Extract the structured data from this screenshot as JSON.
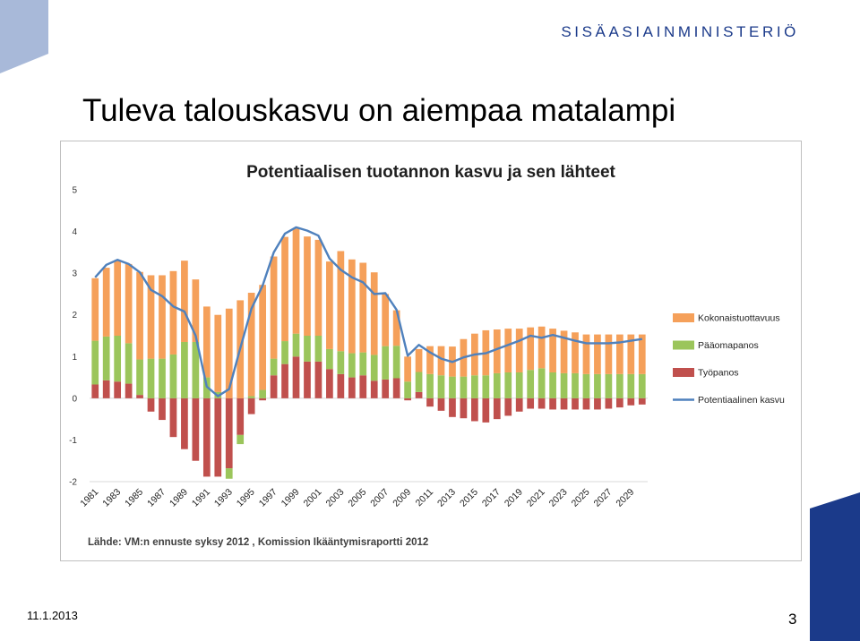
{
  "header": {
    "ministry_name": "SISÄASIAINMINISTERIÖ",
    "slide_title": "Tuleva talouskasvu on aiempaa matalampi"
  },
  "footer": {
    "date": "11.1.2013",
    "page_number": "3"
  },
  "colors": {
    "brand_blue": "#1b3a8a",
    "deco_light_blue": "#a8b9d9",
    "kokonaistuottavuus": "#f5a05a",
    "paaomapanos": "#9bc55b",
    "tyopanos": "#c0504d",
    "potentiaalinen_kasvu": "#4f81bd"
  },
  "chart_data": {
    "type": "bar",
    "stacked": true,
    "title": "Potentiaalisen tuotannon kasvu ja sen lähteet",
    "source": "Lähde: VM:n ennuste syksy 2012 , Komission Ikääntymisraportti 2012",
    "xlabel": "",
    "ylabel": "",
    "ylim": [
      -2,
      5
    ],
    "yticks": [
      "5",
      "4",
      "3",
      "2",
      "1",
      "0",
      "-1",
      "-2"
    ],
    "grid": false,
    "legend_position": "right",
    "x": [
      1981,
      1982,
      1983,
      1984,
      1985,
      1986,
      1987,
      1988,
      1989,
      1990,
      1991,
      1992,
      1993,
      1994,
      1995,
      1996,
      1997,
      1998,
      1999,
      2000,
      2001,
      2002,
      2003,
      2004,
      2005,
      2006,
      2007,
      2008,
      2009,
      2010,
      2011,
      2012,
      2013,
      2014,
      2015,
      2016,
      2017,
      2018,
      2019,
      2020,
      2021,
      2022,
      2023,
      2024,
      2025,
      2026,
      2027,
      2028,
      2029,
      2030
    ],
    "xtick_labels": [
      "1981",
      "1983",
      "1985",
      "1987",
      "1989",
      "1991",
      "1993",
      "1995",
      "1997",
      "1999",
      "2001",
      "2003",
      "2005",
      "2007",
      "2009",
      "2011",
      "2013",
      "2015",
      "2017",
      "2019",
      "2021",
      "2023",
      "2025",
      "2027",
      "2029"
    ],
    "series": [
      {
        "name": "Työpanos",
        "kind": "bar",
        "values": [
          0.33,
          0.43,
          0.4,
          0.35,
          0.08,
          -0.32,
          -0.52,
          -0.93,
          -1.22,
          -1.5,
          -1.88,
          -1.88,
          -1.68,
          -0.88,
          -0.38,
          -0.05,
          0.55,
          0.82,
          1.0,
          0.88,
          0.88,
          0.7,
          0.58,
          0.5,
          0.55,
          0.42,
          0.45,
          0.48,
          -0.05,
          0.15,
          -0.2,
          -0.3,
          -0.45,
          -0.48,
          -0.55,
          -0.58,
          -0.5,
          -0.42,
          -0.32,
          -0.25,
          -0.25,
          -0.27,
          -0.27,
          -0.27,
          -0.27,
          -0.27,
          -0.25,
          -0.22,
          -0.17,
          -0.15
        ]
      },
      {
        "name": "Pääomapanos",
        "kind": "bar",
        "values": [
          1.05,
          1.05,
          1.1,
          0.97,
          0.85,
          0.95,
          0.95,
          1.05,
          1.35,
          1.35,
          0.5,
          0.15,
          -0.25,
          -0.22,
          0.05,
          0.2,
          0.4,
          0.55,
          0.55,
          0.62,
          0.62,
          0.48,
          0.55,
          0.58,
          0.55,
          0.62,
          0.8,
          0.78,
          0.4,
          0.48,
          0.58,
          0.55,
          0.52,
          0.52,
          0.55,
          0.55,
          0.6,
          0.62,
          0.62,
          0.68,
          0.72,
          0.62,
          0.6,
          0.6,
          0.58,
          0.58,
          0.58,
          0.58,
          0.58,
          0.58
        ]
      },
      {
        "name": "Kokonaistuottavuus",
        "kind": "bar",
        "values": [
          1.5,
          1.65,
          1.8,
          1.9,
          2.1,
          2.0,
          2.0,
          2.0,
          1.95,
          1.5,
          1.7,
          1.85,
          2.15,
          2.35,
          2.48,
          2.52,
          2.45,
          2.5,
          2.52,
          2.38,
          2.3,
          2.1,
          2.4,
          2.25,
          2.15,
          1.98,
          1.25,
          0.85,
          0.6,
          0.55,
          0.67,
          0.7,
          0.72,
          0.9,
          1.0,
          1.08,
          1.05,
          1.05,
          1.05,
          1.02,
          1.0,
          1.05,
          1.02,
          0.98,
          0.95,
          0.95,
          0.95,
          0.95,
          0.95,
          0.95
        ]
      },
      {
        "name": "Potentiaalinen kasvu",
        "kind": "line",
        "values": [
          2.9,
          3.2,
          3.32,
          3.22,
          3.02,
          2.6,
          2.45,
          2.2,
          2.08,
          1.5,
          0.28,
          0.05,
          0.22,
          1.2,
          2.15,
          2.7,
          3.5,
          3.95,
          4.1,
          4.02,
          3.9,
          3.35,
          3.08,
          2.9,
          2.78,
          2.5,
          2.52,
          2.12,
          1.02,
          1.28,
          1.1,
          0.95,
          0.87,
          0.98,
          1.05,
          1.08,
          1.18,
          1.28,
          1.38,
          1.5,
          1.45,
          1.52,
          1.45,
          1.38,
          1.32,
          1.32,
          1.32,
          1.34,
          1.38,
          1.42
        ]
      }
    ]
  }
}
